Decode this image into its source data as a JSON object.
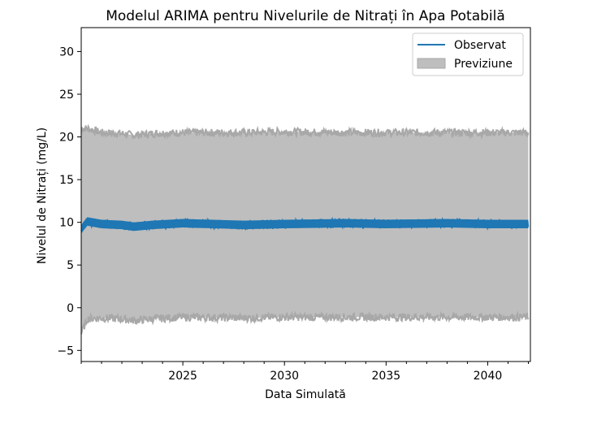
{
  "chart_data": {
    "type": "line",
    "title": "Modelul ARIMA pentru Nivelurile de Nitrați în Apa Potabilă",
    "xlabel": "Data Simulată",
    "ylabel": "Nivelul de Nitrați (mg/L)",
    "xlim": [
      2020.0,
      2042.1
    ],
    "ylim": [
      -6.3,
      32.8
    ],
    "x_ticks": [
      2025,
      2030,
      2035,
      2040
    ],
    "y_ticks": [
      -5,
      0,
      5,
      10,
      15,
      20,
      25,
      30
    ],
    "grid": false,
    "legend_position": "top-right",
    "series": [
      {
        "name": "Observat",
        "kind": "line",
        "color": "#1f77b4",
        "x_start": 2020.0,
        "x_end": 2042.0,
        "mean": 9.8,
        "band_half_width": 0.5,
        "x": [
          2020.0,
          2020.3,
          2021.0,
          2022.0,
          2022.6,
          2023.5,
          2025.0,
          2028.0,
          2030.0,
          2033.0,
          2035.0,
          2038.0,
          2040.0,
          2042.0
        ],
        "values": [
          9.2,
          10.1,
          9.8,
          9.7,
          9.5,
          9.7,
          9.9,
          9.7,
          9.8,
          9.9,
          9.8,
          9.9,
          9.8,
          9.8
        ]
      },
      {
        "name": "Previziune",
        "kind": "interval",
        "color": "#bebebe",
        "edge_color": "#a8a8a8",
        "x": [
          2020.0,
          2020.3,
          2021.0,
          2022.0,
          2022.6,
          2023.5,
          2025.0,
          2028.0,
          2030.0,
          2033.0,
          2035.0,
          2038.0,
          2040.0,
          2042.0
        ],
        "lower": [
          -3.0,
          -1.3,
          -1.2,
          -1.3,
          -1.5,
          -1.3,
          -1.1,
          -1.2,
          -1.1,
          -1.1,
          -1.1,
          -1.1,
          -1.1,
          -1.1
        ],
        "upper": [
          21.0,
          21.0,
          20.5,
          20.4,
          20.2,
          20.4,
          20.5,
          20.5,
          20.6,
          20.5,
          20.5,
          20.5,
          20.5,
          20.5
        ]
      }
    ]
  }
}
